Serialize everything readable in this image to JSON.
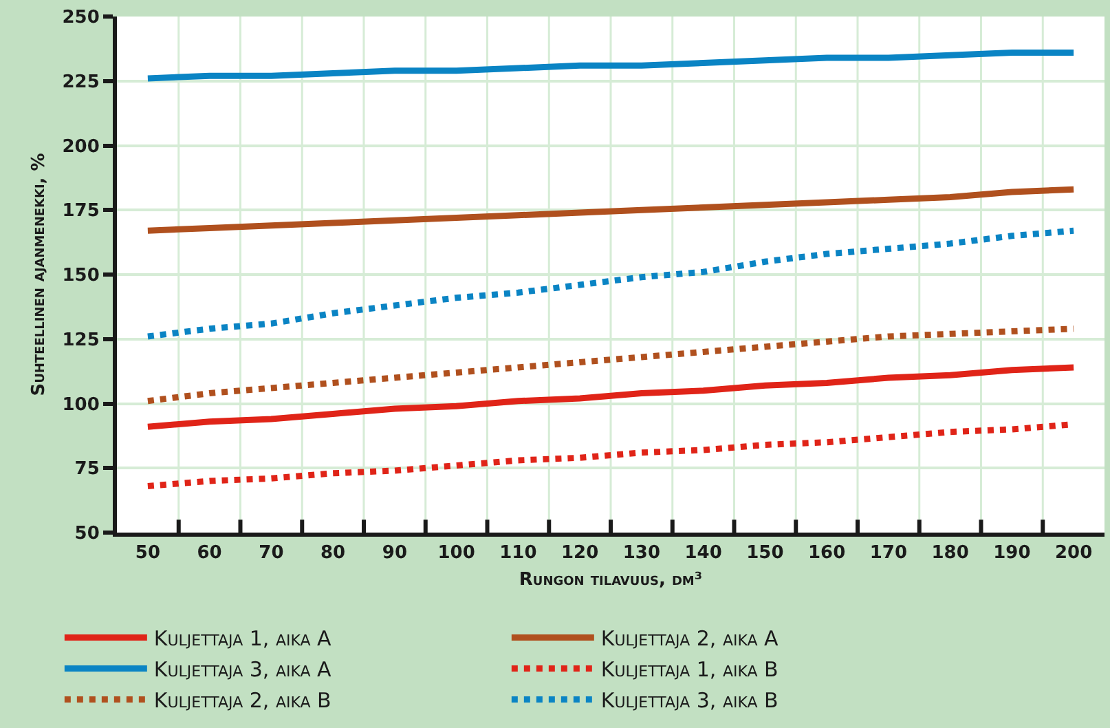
{
  "chart_data": {
    "type": "line",
    "xlabel": "Rungon tilavuus, dm³",
    "ylabel": "Suhteellinen ajanmenekki, %",
    "categories": [
      "50",
      "60",
      "70",
      "80",
      "90",
      "100",
      "110",
      "120",
      "130",
      "140",
      "150",
      "160",
      "170",
      "180",
      "190",
      "200"
    ],
    "ylim": [
      50,
      250
    ],
    "yticks": [
      50,
      75,
      100,
      125,
      150,
      175,
      200,
      225,
      250
    ],
    "grid": true,
    "legend": "bottom",
    "series": [
      {
        "name": "Kuljettaja 1, aika A",
        "color": "#e02418",
        "line_style": "solid",
        "values": [
          91,
          93,
          94,
          96,
          98,
          99,
          101,
          102,
          104,
          105,
          107,
          108,
          110,
          111,
          113,
          114
        ]
      },
      {
        "name": "Kuljettaja 2, aika A",
        "color": "#b0501e",
        "line_style": "solid",
        "values": [
          167,
          168,
          169,
          170,
          171,
          172,
          173,
          174,
          175,
          176,
          177,
          178,
          179,
          180,
          182,
          183
        ]
      },
      {
        "name": "Kuljettaja 3, aika A",
        "color": "#0a84c4",
        "line_style": "solid",
        "values": [
          226,
          227,
          227,
          228,
          229,
          229,
          230,
          231,
          231,
          232,
          233,
          234,
          234,
          235,
          236,
          236
        ]
      },
      {
        "name": "Kuljettaja 1, aika B",
        "color": "#e02418",
        "line_style": "dotted",
        "values": [
          68,
          70,
          71,
          73,
          74,
          76,
          78,
          79,
          81,
          82,
          84,
          85,
          87,
          89,
          90,
          92
        ]
      },
      {
        "name": "Kuljettaja 2, aika B",
        "color": "#b0501e",
        "line_style": "dotted",
        "values": [
          101,
          104,
          106,
          108,
          110,
          112,
          114,
          116,
          118,
          120,
          122,
          124,
          126,
          127,
          128,
          129
        ]
      },
      {
        "name": "Kuljettaja 3, aika B",
        "color": "#0a84c4",
        "line_style": "dotted",
        "values": [
          126,
          129,
          131,
          135,
          138,
          141,
          143,
          146,
          149,
          151,
          155,
          158,
          160,
          162,
          165,
          167
        ]
      }
    ]
  }
}
